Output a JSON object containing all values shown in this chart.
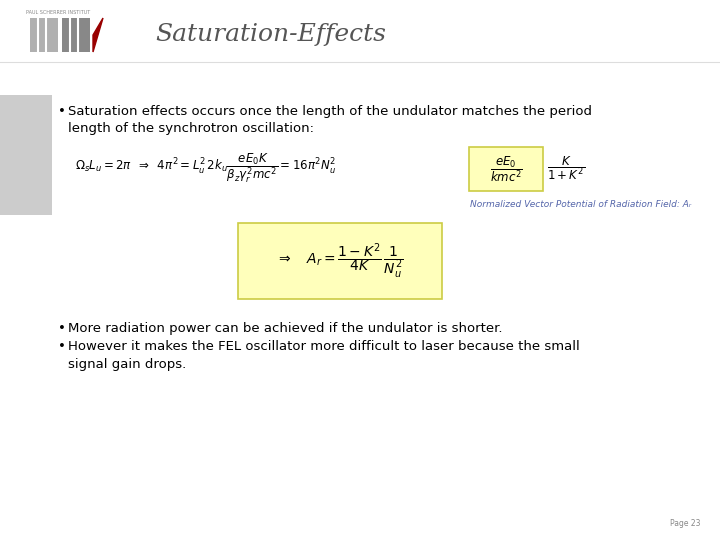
{
  "title": "Saturation-Effects",
  "bg_color": "#ffffff",
  "title_color": "#555555",
  "title_fontsize": 18,
  "text_color": "#000000",
  "bullet1_line1": "Saturation effects occurs once the length of the undulator matches the period",
  "bullet1_line2": "length of the synchrotron oscillation:",
  "eq_label": "Normalized Vector Potential of Radiation Field: Aᵣ",
  "bullet2": "More radiation power can be achieved if the undulator is shorter.",
  "bullet3_line1": "However it makes the FEL oscillator more difficult to laser because the small",
  "bullet3_line2": "signal gain drops.",
  "page_num": "Page 23",
  "sidebar_color": "#999999",
  "highlight_color": "#ffffbb",
  "highlight_border": "#cccc44",
  "text_fontsize": 9.5,
  "eq_fontsize": 8.5,
  "label_fontsize": 6.5
}
